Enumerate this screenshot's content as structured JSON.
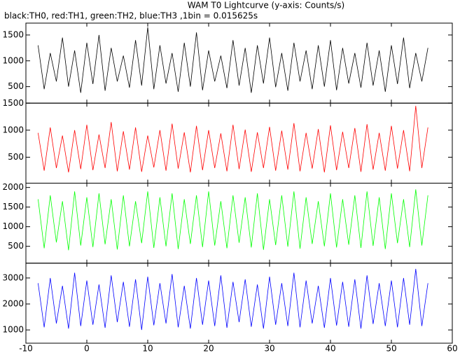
{
  "chart_data": [
    {
      "type": "line",
      "title": "WAM T0 Lightcurve (y-axis: Counts/s)",
      "subtitle": "black:TH0, red:TH1, green:TH2, blue:TH3 ,1bin = 0.015625s",
      "x": [
        -8,
        -7,
        -6,
        -5,
        -4,
        -3,
        -2,
        -1,
        0,
        1,
        2,
        3,
        4,
        5,
        6,
        7,
        8,
        9,
        10,
        11,
        12,
        13,
        14,
        15,
        16,
        17,
        18,
        19,
        20,
        21,
        22,
        23,
        24,
        25,
        26,
        27,
        28,
        29,
        30,
        31,
        32,
        33,
        34,
        35,
        36,
        37,
        38,
        39,
        40,
        41,
        42,
        43,
        44,
        45,
        46,
        47,
        48,
        49,
        50,
        51,
        52,
        53,
        54,
        55,
        56
      ],
      "series": [
        {
          "color": "#000000",
          "values": [
            1300,
            450,
            1150,
            600,
            1450,
            500,
            1200,
            380,
            1350,
            550,
            1500,
            420,
            1250,
            600,
            1100,
            480,
            1400,
            520,
            1650,
            450,
            1300,
            560,
            1150,
            400,
            1350,
            500,
            1550,
            430,
            1200,
            600,
            1100,
            470,
            1400,
            520,
            1250,
            380,
            1300,
            560,
            1450,
            490,
            1150,
            420,
            1350,
            600,
            1200,
            450,
            1300,
            500,
            1400,
            430,
            1250,
            560,
            1150,
            480,
            1350,
            520,
            1200,
            400,
            1300,
            550,
            1450,
            470,
            1150,
            600,
            1250
          ]
        }
      ],
      "xlim": [
        -10,
        60
      ],
      "ylim": [
        180,
        1730
      ],
      "yticks": [
        500,
        1000,
        1500
      ]
    },
    {
      "type": "line",
      "x": [
        -8,
        -7,
        -6,
        -5,
        -4,
        -3,
        -2,
        -1,
        0,
        1,
        2,
        3,
        4,
        5,
        6,
        7,
        8,
        9,
        10,
        11,
        12,
        13,
        14,
        15,
        16,
        17,
        18,
        19,
        20,
        21,
        22,
        23,
        24,
        25,
        26,
        27,
        28,
        29,
        30,
        31,
        32,
        33,
        34,
        35,
        36,
        37,
        38,
        39,
        40,
        41,
        42,
        43,
        44,
        45,
        46,
        47,
        48,
        49,
        50,
        51,
        52,
        53,
        54,
        55,
        56
      ],
      "series": [
        {
          "color": "#ff0000",
          "values": [
            950,
            250,
            1050,
            300,
            900,
            220,
            1000,
            280,
            1100,
            260,
            920,
            300,
            1150,
            240,
            980,
            270,
            1050,
            230,
            900,
            310,
            1000,
            250,
            1120,
            290,
            960,
            220,
            1080,
            260,
            1000,
            300,
            940,
            240,
            1100,
            280,
            1010,
            230,
            960,
            300,
            1060,
            250,
            990,
            270,
            1130,
            240,
            950,
            290,
            1020,
            220,
            1090,
            260,
            970,
            300,
            1040,
            230,
            1110,
            270,
            950,
            250,
            1080,
            290,
            1000,
            240,
            1450,
            300,
            1050
          ]
        }
      ],
      "xlim": [
        -10,
        60
      ],
      "ylim": [
        20,
        1500
      ],
      "yticks": [
        500,
        1000,
        1500
      ]
    },
    {
      "type": "line",
      "x": [
        -8,
        -7,
        -6,
        -5,
        -4,
        -3,
        -2,
        -1,
        0,
        1,
        2,
        3,
        4,
        5,
        6,
        7,
        8,
        9,
        10,
        11,
        12,
        13,
        14,
        15,
        16,
        17,
        18,
        19,
        20,
        21,
        22,
        23,
        24,
        25,
        26,
        27,
        28,
        29,
        30,
        31,
        32,
        33,
        34,
        35,
        36,
        37,
        38,
        39,
        40,
        41,
        42,
        43,
        44,
        45,
        46,
        47,
        48,
        49,
        50,
        51,
        52,
        53,
        54,
        55,
        56
      ],
      "series": [
        {
          "color": "#00ff00",
          "values": [
            1700,
            450,
            1800,
            600,
            1650,
            400,
            1900,
            520,
            1750,
            480,
            1850,
            550,
            1700,
            420,
            1800,
            500,
            1650,
            580,
            1900,
            460,
            1750,
            500,
            1850,
            430,
            1700,
            560,
            1800,
            480,
            1900,
            520,
            1650,
            450,
            1800,
            590,
            1750,
            470,
            1850,
            410,
            1700,
            530,
            1800,
            490,
            1900,
            440,
            1750,
            560,
            1650,
            500,
            1850,
            470,
            1700,
            540,
            1800,
            460,
            1900,
            510,
            1750,
            430,
            1850,
            580,
            1700,
            480,
            1950,
            520,
            1800
          ]
        }
      ],
      "xlim": [
        -10,
        60
      ],
      "ylim": [
        70,
        2110
      ],
      "yticks": [
        500,
        1000,
        1500,
        2000
      ]
    },
    {
      "type": "line",
      "x": [
        -8,
        -7,
        -6,
        -5,
        -4,
        -3,
        -2,
        -1,
        0,
        1,
        2,
        3,
        4,
        5,
        6,
        7,
        8,
        9,
        10,
        11,
        12,
        13,
        14,
        15,
        16,
        17,
        18,
        19,
        20,
        21,
        22,
        23,
        24,
        25,
        26,
        27,
        28,
        29,
        30,
        31,
        32,
        33,
        34,
        35,
        36,
        37,
        38,
        39,
        40,
        41,
        42,
        43,
        44,
        45,
        46,
        47,
        48,
        49,
        50,
        51,
        52,
        53,
        54,
        55,
        56
      ],
      "series": [
        {
          "color": "#0000ff",
          "values": [
            2800,
            1100,
            3000,
            1250,
            2700,
            1050,
            3200,
            1150,
            2900,
            1200,
            2750,
            1080,
            3100,
            1300,
            2850,
            1120,
            2950,
            1000,
            3050,
            1180,
            2800,
            1250,
            3150,
            1100,
            2700,
            1050,
            3000,
            1200,
            2900,
            1150,
            3100,
            1080,
            2850,
            1300,
            2950,
            1120,
            2750,
            1050,
            3050,
            1200,
            2800,
            1150,
            3200,
            1100,
            2900,
            1250,
            2700,
            1080,
            3000,
            1170,
            2850,
            1120,
            2950,
            1050,
            3100,
            1230,
            2800,
            1150,
            2900,
            1100,
            3000,
            1200,
            3350,
            1150,
            2800
          ]
        }
      ],
      "xlim": [
        -10,
        60
      ],
      "ylim": [
        490,
        3570
      ],
      "yticks": [
        1000,
        2000,
        3000
      ],
      "xticks": [
        -10,
        0,
        10,
        20,
        30,
        40,
        50,
        60
      ]
    }
  ]
}
